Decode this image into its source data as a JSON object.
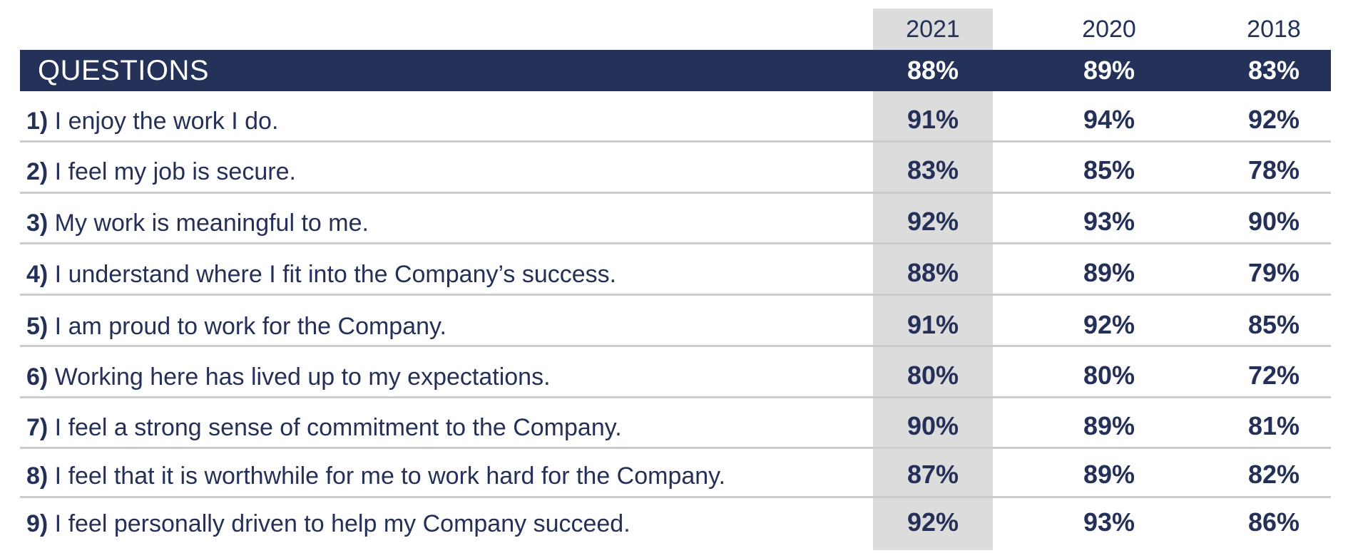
{
  "chart_data": {
    "type": "table",
    "header": {
      "label": "QUESTIONS",
      "years": [
        "2021",
        "2020",
        "2018"
      ],
      "overall": [
        "88%",
        "89%",
        "83%"
      ]
    },
    "rows": [
      {
        "num": "1)",
        "text": "I enjoy the work I do.",
        "values": [
          "91%",
          "94%",
          "92%"
        ]
      },
      {
        "num": "2)",
        "text": "I feel my job is secure.",
        "values": [
          "83%",
          "85%",
          "78%"
        ]
      },
      {
        "num": "3)",
        "text": "My work is meaningful to me.",
        "values": [
          "92%",
          "93%",
          "90%"
        ]
      },
      {
        "num": "4)",
        "text": "I understand where I fit into the Company’s success.",
        "values": [
          "88%",
          "89%",
          "79%"
        ]
      },
      {
        "num": "5)",
        "text": "I am proud to work for the Company.",
        "values": [
          "91%",
          "92%",
          "85%"
        ]
      },
      {
        "num": "6)",
        "text": "Working here has lived up to my expectations.",
        "values": [
          "80%",
          "80%",
          "72%"
        ]
      },
      {
        "num": "7)",
        "text": "I feel a strong sense of commitment to the Company.",
        "values": [
          "90%",
          "89%",
          "81%"
        ]
      },
      {
        "num": "8)",
        "text": "I feel that it is worthwhile for me to work hard for the Company.",
        "values": [
          "87%",
          "89%",
          "82%"
        ]
      },
      {
        "num": "9)",
        "text": "I feel personally driven to help my Company succeed.",
        "values": [
          "92%",
          "93%",
          "86%"
        ]
      }
    ],
    "highlighted_year": "2021"
  },
  "colors": {
    "header_bg": "#243159",
    "text": "#253058",
    "highlight": "#dcdcdc",
    "divider": "#cccccc"
  }
}
